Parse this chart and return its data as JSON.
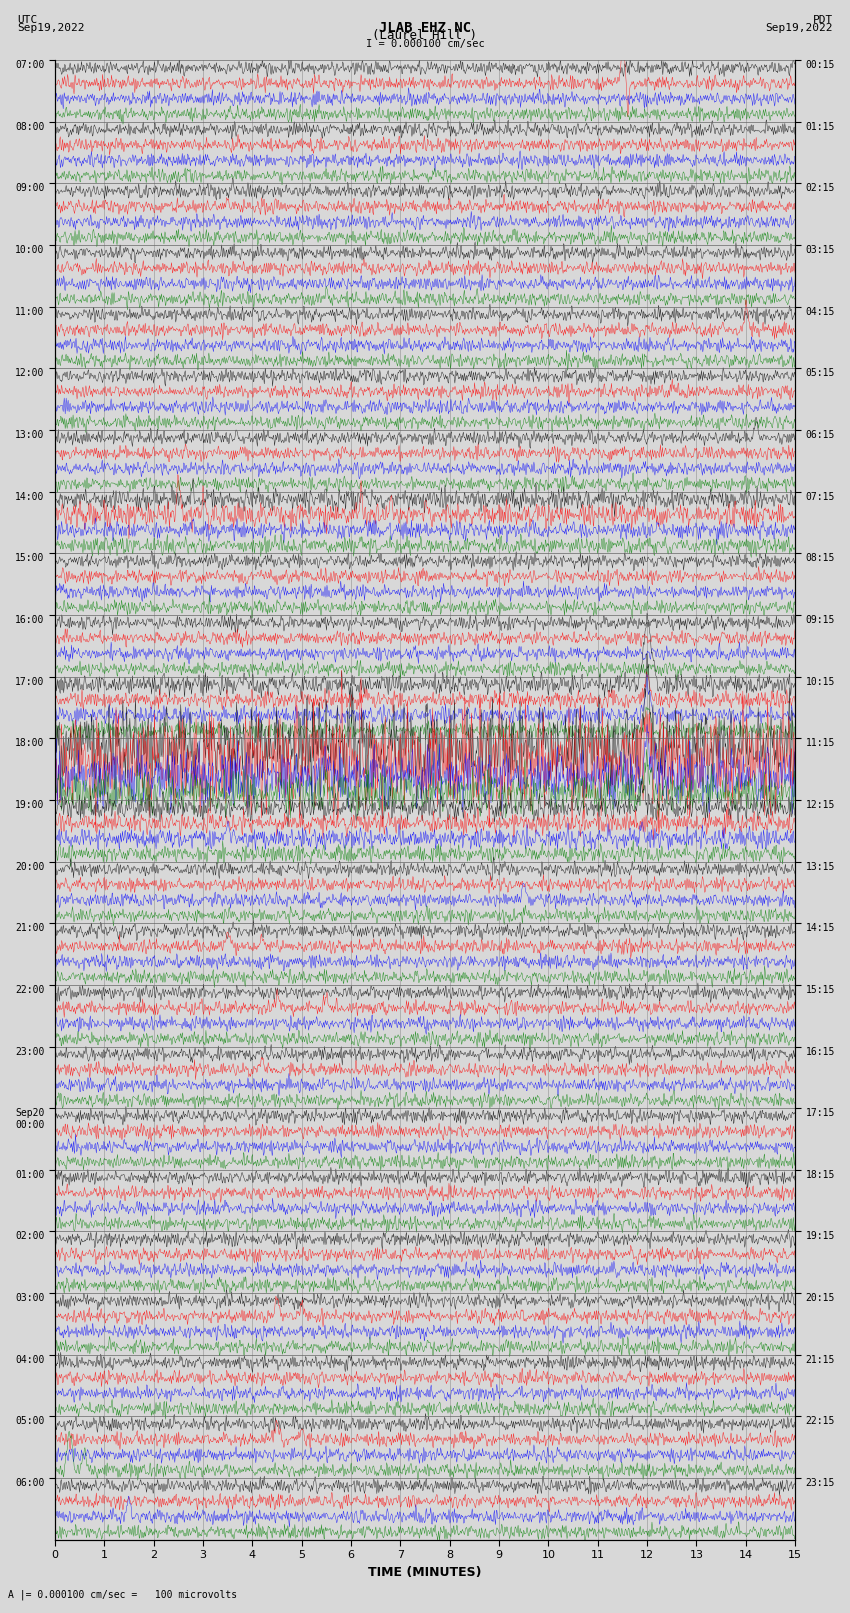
{
  "title_line1": "JLAB EHZ NC",
  "title_line2": "(Laurel Hill )",
  "scale_label": "I = 0.000100 cm/sec",
  "left_label_top": "UTC",
  "left_label_date": "Sep19,2022",
  "right_label_top": "PDT",
  "right_label_date": "Sep19,2022",
  "bottom_label": "TIME (MINUTES)",
  "bottom_note": "A |= 0.000100 cm/sec =   100 microvolts",
  "time_min": 0,
  "time_max": 15,
  "fig_width": 8.5,
  "fig_height": 16.13,
  "bg_color": "#d8d8d8",
  "plot_bg_color": "#d8d8d8",
  "grid_color": "#888888",
  "trace_colors": [
    "black",
    "red",
    "blue",
    "green"
  ],
  "utc_times": [
    "07:00",
    "08:00",
    "09:00",
    "10:00",
    "11:00",
    "12:00",
    "13:00",
    "14:00",
    "15:00",
    "16:00",
    "17:00",
    "18:00",
    "19:00",
    "20:00",
    "21:00",
    "22:00",
    "23:00",
    "Sep20\n00:00",
    "01:00",
    "02:00",
    "03:00",
    "04:00",
    "05:00",
    "06:00"
  ],
  "pdt_times": [
    "00:15",
    "01:15",
    "02:15",
    "03:15",
    "04:15",
    "05:15",
    "06:15",
    "07:15",
    "08:15",
    "09:15",
    "10:15",
    "11:15",
    "12:15",
    "13:15",
    "14:15",
    "15:15",
    "16:15",
    "17:15",
    "18:15",
    "19:15",
    "20:15",
    "21:15",
    "22:15",
    "23:15"
  ],
  "num_rows": 24,
  "traces_per_row": 4,
  "seed": 42
}
